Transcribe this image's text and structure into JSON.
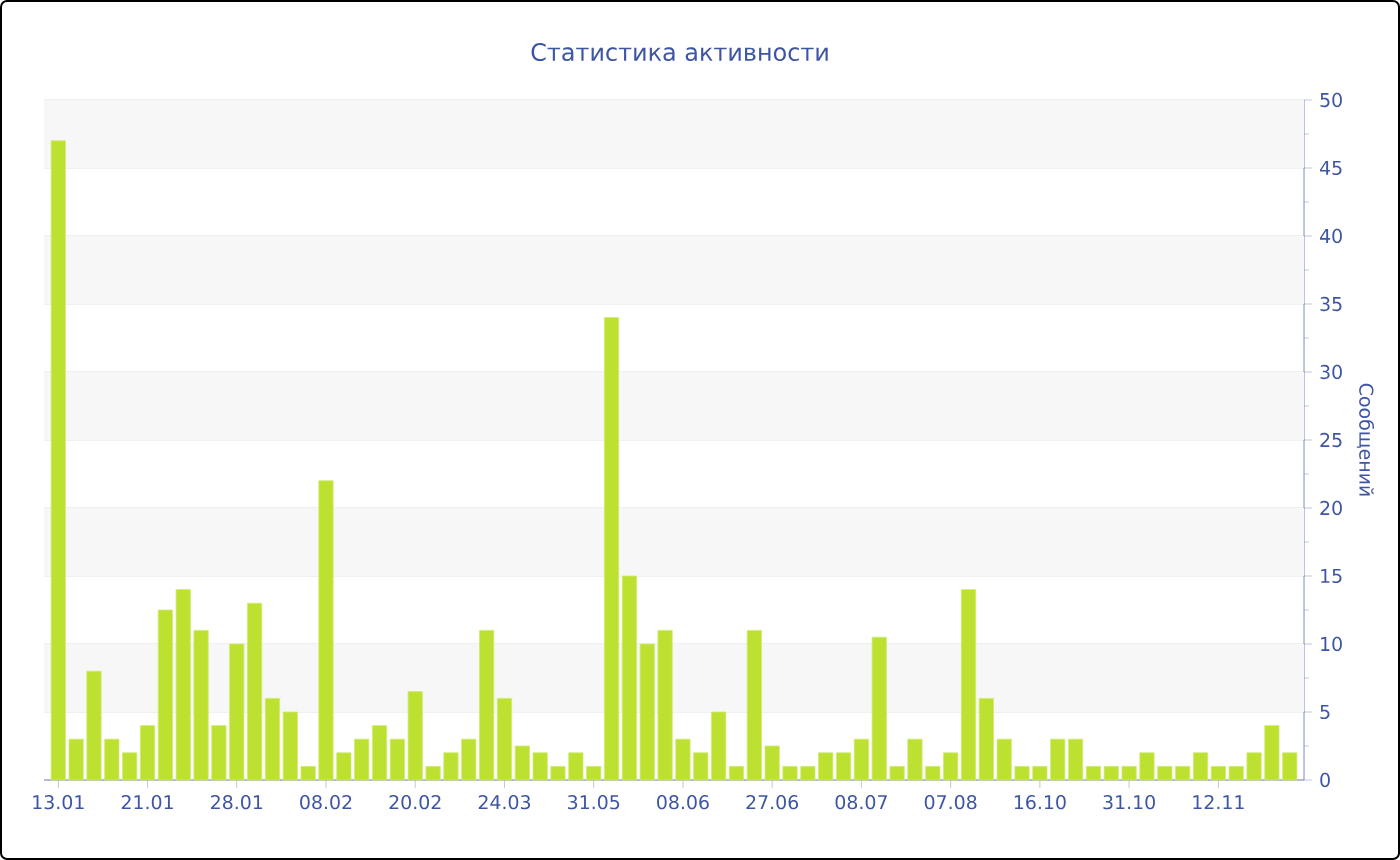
{
  "chart_data": {
    "type": "bar",
    "title": "Статистика активности",
    "ylabel": "Сообщений",
    "categories": [
      "13.01",
      null,
      null,
      null,
      null,
      "21.01",
      null,
      null,
      null,
      null,
      "28.01",
      null,
      null,
      null,
      null,
      "08.02",
      null,
      null,
      null,
      null,
      "20.02",
      null,
      null,
      null,
      null,
      "24.03",
      null,
      null,
      null,
      null,
      "31.05",
      null,
      null,
      null,
      null,
      "08.06",
      null,
      null,
      null,
      null,
      "27.06",
      null,
      null,
      null,
      null,
      "08.07",
      null,
      null,
      null,
      null,
      "07.08",
      null,
      null,
      null,
      null,
      "16.10",
      null,
      null,
      null,
      null,
      "31.10",
      null,
      null,
      null,
      null,
      "12.11",
      null,
      null,
      null,
      null
    ],
    "values": [
      47,
      3,
      8,
      3,
      2,
      4,
      12.5,
      14,
      11,
      4,
      10,
      13,
      6,
      5,
      1,
      22,
      2,
      3,
      4,
      3,
      6.5,
      1,
      2,
      3,
      11,
      6,
      2.5,
      2,
      1,
      2,
      1,
      34,
      15,
      10,
      11,
      3,
      2,
      5,
      1,
      11,
      2.5,
      1,
      1,
      2,
      2,
      3,
      10.5,
      1,
      3,
      1,
      2,
      14,
      6,
      3,
      1,
      1,
      3,
      3,
      1,
      1,
      1,
      2,
      1,
      1,
      2,
      1,
      1,
      2,
      4,
      2
    ],
    "color": "#bce131",
    "ylim": [
      0,
      50
    ],
    "yticks": [
      0,
      5,
      10,
      15,
      20,
      25,
      30,
      35,
      40,
      45,
      50
    ],
    "grid": "y"
  }
}
